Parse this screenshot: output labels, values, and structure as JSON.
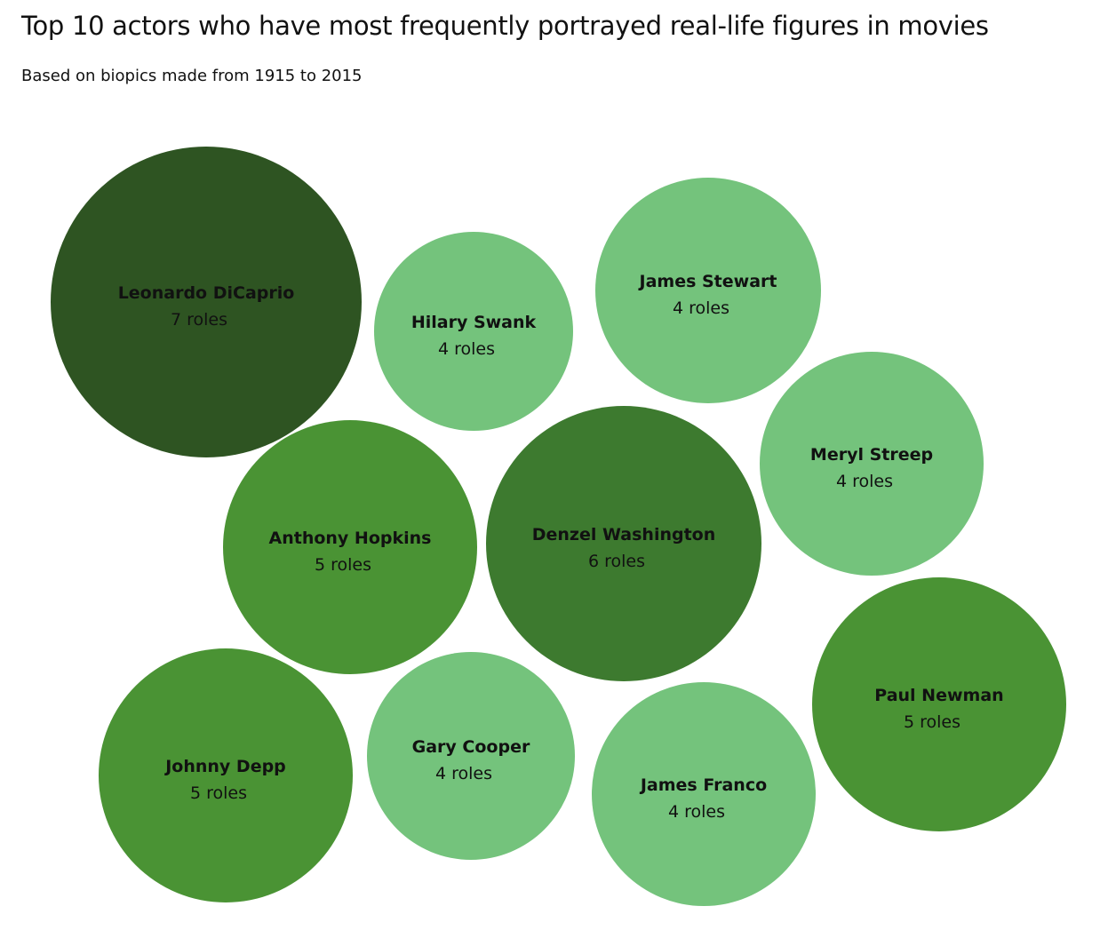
{
  "title": "Top 10 actors who have most frequently portrayed real-life figures in movies",
  "subtitle": "Based on biopics made from 1915 to 2015",
  "chart_data": {
    "type": "bubble",
    "title": "Top 10 actors who have most frequently portrayed real-life figures in movies",
    "subtitle": "Based on biopics made from 1915 to 2015",
    "value_label": "roles",
    "color_scale": {
      "4": "#74c37c",
      "5": "#4a9334",
      "6": "#3d7a2f",
      "7": "#2e5422"
    },
    "items": [
      {
        "name": "Leonardo DiCaprio",
        "value": 7,
        "label": "7 roles"
      },
      {
        "name": "Denzel Washington",
        "value": 6,
        "label": "6 roles"
      },
      {
        "name": "Anthony Hopkins",
        "value": 5,
        "label": "5 roles"
      },
      {
        "name": "Johnny Depp",
        "value": 5,
        "label": "5 roles"
      },
      {
        "name": "Paul Newman",
        "value": 5,
        "label": "5 roles"
      },
      {
        "name": "Hilary Swank",
        "value": 4,
        "label": "4 roles"
      },
      {
        "name": "James Stewart",
        "value": 4,
        "label": "4 roles"
      },
      {
        "name": "Meryl Streep",
        "value": 4,
        "label": "4 roles"
      },
      {
        "name": "Gary Cooper",
        "value": 4,
        "label": "4 roles"
      },
      {
        "name": "James Franco",
        "value": 4,
        "label": "4 roles"
      }
    ]
  }
}
